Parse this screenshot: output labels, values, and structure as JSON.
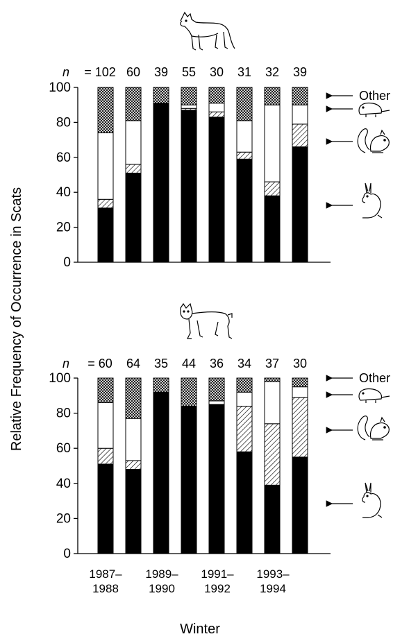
{
  "ylabel": "Relative Frequency of Occurrence in Scats",
  "xlabel": "Winter",
  "n_prefix": "n =",
  "legend_other": "Other",
  "x_tick_labels": [
    {
      "top": "1987–",
      "bottom": "1988"
    },
    {
      "top": "1989–",
      "bottom": "1990"
    },
    {
      "top": "1991–",
      "bottom": "1992"
    },
    {
      "top": "1993–",
      "bottom": "1994"
    }
  ],
  "icons": {
    "coyote": "coyote-icon",
    "lynx": "lynx-icon",
    "vole": "vole-icon",
    "squirrel": "squirrel-icon",
    "hare": "hare-icon"
  },
  "chart_data": [
    {
      "type": "bar",
      "stacked": true,
      "predator": "coyote",
      "n": [
        102,
        60,
        39,
        55,
        30,
        31,
        32,
        39
      ],
      "ylim": [
        0,
        100
      ],
      "yticks": [
        0,
        20,
        40,
        60,
        80,
        100
      ],
      "series": [
        {
          "pattern": "solid-black",
          "legend_icon": "hare-icon",
          "values": [
            31,
            51,
            91,
            87,
            83,
            59,
            38,
            66
          ]
        },
        {
          "pattern": "diagonal-hatch",
          "legend_icon": "squirrel-icon",
          "values": [
            5,
            5,
            0,
            1,
            3,
            4,
            8,
            13
          ]
        },
        {
          "pattern": "white",
          "legend_icon": "vole-icon",
          "values": [
            38,
            25,
            0,
            2,
            5,
            18,
            44,
            11
          ]
        },
        {
          "pattern": "crosshatch",
          "legend_label": "Other",
          "values": [
            26,
            19,
            9,
            10,
            9,
            19,
            10,
            10
          ]
        }
      ]
    },
    {
      "type": "bar",
      "stacked": true,
      "predator": "lynx",
      "n": [
        60,
        64,
        35,
        44,
        36,
        34,
        37,
        30
      ],
      "ylim": [
        0,
        100
      ],
      "yticks": [
        0,
        20,
        40,
        60,
        80,
        100
      ],
      "series": [
        {
          "pattern": "solid-black",
          "legend_icon": "hare-icon",
          "values": [
            51,
            48,
            92,
            84,
            85,
            58,
            39,
            55
          ]
        },
        {
          "pattern": "diagonal-hatch",
          "legend_icon": "squirrel-icon",
          "values": [
            9,
            5,
            0,
            0,
            0,
            26,
            35,
            34
          ]
        },
        {
          "pattern": "white",
          "legend_icon": "vole-icon",
          "values": [
            26,
            24,
            0,
            0,
            2,
            8,
            24,
            6
          ]
        },
        {
          "pattern": "crosshatch",
          "legend_label": "Other",
          "values": [
            14,
            23,
            8,
            16,
            13,
            8,
            2,
            5
          ]
        }
      ]
    }
  ]
}
